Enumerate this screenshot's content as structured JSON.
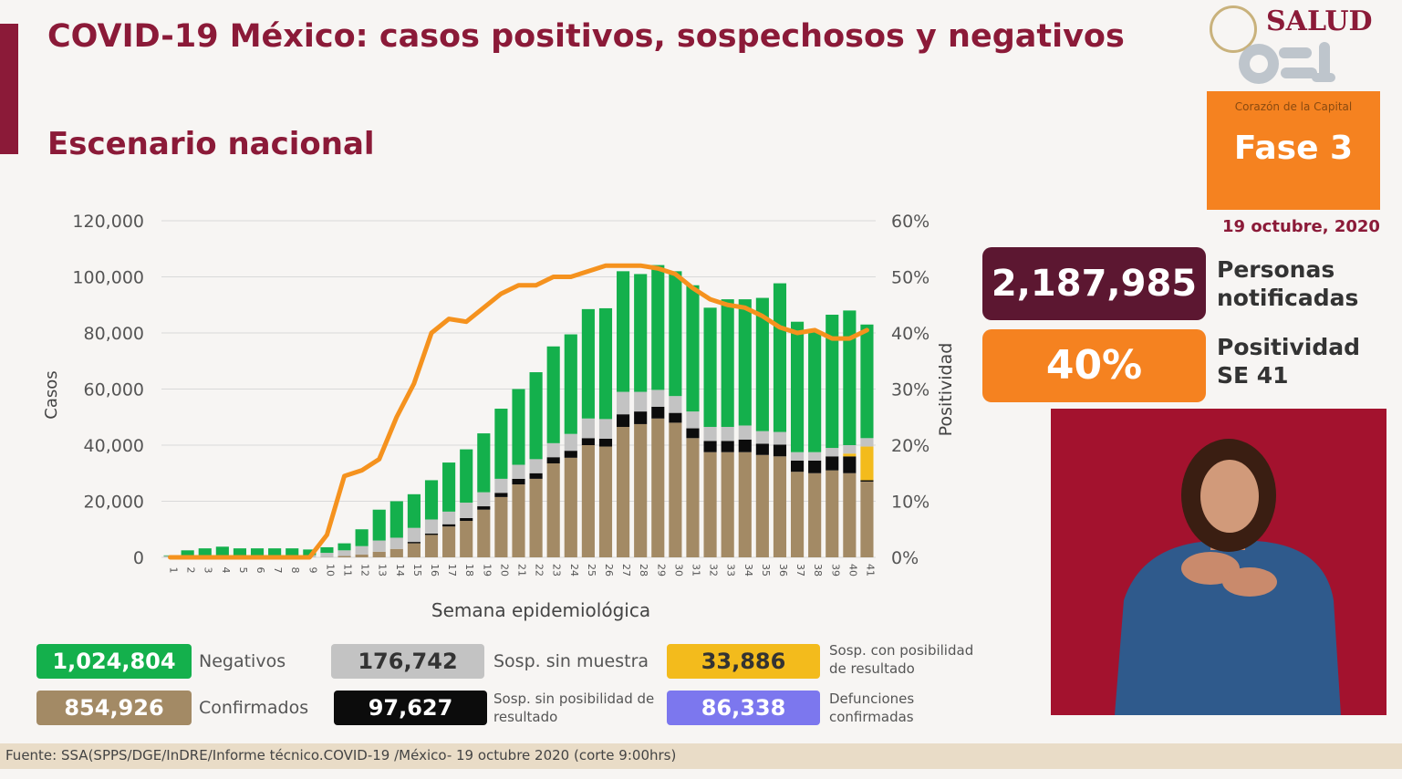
{
  "header": {
    "title": "COVID-19 México: casos positivos, sospechosos y negativos",
    "subtitle": "Escenario nacional"
  },
  "branding": {
    "salud": "SALUD",
    "cdmx_tagline": "Corazón de la Capital",
    "fase": "Fase 3",
    "date": "19 octubre, 2020"
  },
  "stats": {
    "personas_value": "2,187,985",
    "personas_label": "Personas notificadas",
    "positividad_value": "40%",
    "positividad_label": "Positividad SE 41"
  },
  "legend": {
    "negativos": {
      "value": "1,024,804",
      "label": "Negativos",
      "color": "#14b04c"
    },
    "confirmados": {
      "value": "854,926",
      "label": "Confirmados",
      "color": "#a38a65"
    },
    "sin_muestra": {
      "value": "176,742",
      "label": "Sosp. sin muestra",
      "color": "#c3c3c3"
    },
    "sin_posibilidad": {
      "value": "97,627",
      "label": "Sosp. sin posibilidad de resultado",
      "color": "#0c0c0c"
    },
    "con_posibilidad": {
      "value": "33,886",
      "label": "Sosp. con posibilidad de resultado",
      "color": "#f3bb1c"
    },
    "defunciones": {
      "value": "86,338",
      "label": "Defunciones confirmadas",
      "color": "#7c77ee"
    }
  },
  "footer": {
    "source": "Fuente: SSA(SPPS/DGE/InDRE/Informe técnico.COVID-19 /México- 19 octubre 2020 (corte 9:00hrs)"
  },
  "chart_data": {
    "type": "bar",
    "stacked": true,
    "xlabel": "Semana epidemiológica",
    "ylabel": "Casos",
    "y2label": "Positividad",
    "ylim": [
      0,
      120000
    ],
    "y2lim": [
      0,
      60
    ],
    "yticks": [
      "0",
      "20,000",
      "40,000",
      "60,000",
      "80,000",
      "100,000",
      "120,000"
    ],
    "y2ticks": [
      "0%",
      "10%",
      "20%",
      "30%",
      "40%",
      "50%",
      "60%"
    ],
    "grid": true,
    "categories": [
      "1",
      "2",
      "3",
      "4",
      "5",
      "6",
      "7",
      "8",
      "9",
      "10",
      "11",
      "12",
      "13",
      "14",
      "15",
      "16",
      "17",
      "18",
      "19",
      "20",
      "21",
      "22",
      "23",
      "24",
      "25",
      "26",
      "27",
      "28",
      "29",
      "30",
      "31",
      "32",
      "33",
      "34",
      "35",
      "36",
      "37",
      "38",
      "39",
      "40",
      "41"
    ],
    "series": [
      {
        "name": "Confirmados",
        "color": "#a38a65",
        "values": [
          0,
          0,
          0,
          0,
          0,
          0,
          0,
          0,
          0,
          100,
          500,
          1000,
          2000,
          3000,
          5000,
          8000,
          11000,
          13000,
          17000,
          21500,
          26000,
          28000,
          33500,
          35500,
          40000,
          39500,
          46500,
          47500,
          49500,
          48000,
          42500,
          37500,
          37500,
          37500,
          36500,
          36000,
          30500,
          30000,
          31000,
          30000,
          27000
        ]
      },
      {
        "name": "Sosp. sin posibilidad de resultado",
        "color": "#0c0c0c",
        "values": [
          0,
          0,
          0,
          0,
          0,
          0,
          0,
          0,
          0,
          0,
          0,
          0,
          0,
          0,
          500,
          500,
          800,
          1000,
          1200,
          1500,
          2000,
          2000,
          2200,
          2500,
          2500,
          2800,
          4500,
          4500,
          4200,
          3500,
          3500,
          4000,
          4000,
          4500,
          4000,
          4200,
          4000,
          4500,
          5000,
          6000,
          500
        ]
      },
      {
        "name": "Sosp. con posibilidad de resultado",
        "color": "#f3bb1c",
        "values": [
          0,
          0,
          0,
          0,
          0,
          0,
          0,
          0,
          0,
          0,
          0,
          0,
          0,
          0,
          0,
          0,
          0,
          0,
          0,
          0,
          0,
          0,
          0,
          0,
          0,
          0,
          0,
          0,
          0,
          0,
          0,
          0,
          0,
          0,
          0,
          0,
          0,
          0,
          0,
          1000,
          12000
        ]
      },
      {
        "name": "Sosp. sin muestra",
        "color": "#c3c3c3",
        "values": [
          500,
          500,
          700,
          800,
          700,
          700,
          700,
          700,
          800,
          1500,
          2000,
          3000,
          4000,
          4000,
          5000,
          5000,
          4500,
          5500,
          5000,
          5000,
          5000,
          5000,
          5000,
          6000,
          7000,
          7000,
          8000,
          7000,
          6000,
          6000,
          6000,
          5000,
          5000,
          5000,
          4500,
          4500,
          3000,
          3000,
          3000,
          3000,
          3000
        ]
      },
      {
        "name": "Negativos",
        "color": "#14b04c",
        "values": [
          200,
          2000,
          2500,
          3000,
          2500,
          2500,
          2500,
          2500,
          2000,
          2000,
          2500,
          6000,
          11000,
          13000,
          12000,
          14000,
          17500,
          19000,
          21000,
          25000,
          27000,
          31000,
          34500,
          35500,
          39000,
          39500,
          43000,
          42000,
          44500,
          44500,
          45000,
          42500,
          45500,
          45000,
          47500,
          53000,
          46500,
          43000,
          47500,
          48000,
          40500
        ]
      }
    ],
    "positividad": [
      0,
      0,
      0,
      0,
      0,
      0,
      0,
      0,
      0,
      4,
      14.5,
      15.5,
      17.5,
      25,
      31,
      40,
      42.5,
      42,
      44.5,
      47,
      48.5,
      48.5,
      50,
      50,
      51,
      52,
      52,
      52,
      51.5,
      50.5,
      48,
      46,
      45,
      44.5,
      43,
      41,
      40,
      40.5,
      39,
      39,
      40.5
    ],
    "line_color": "#f5921e"
  }
}
